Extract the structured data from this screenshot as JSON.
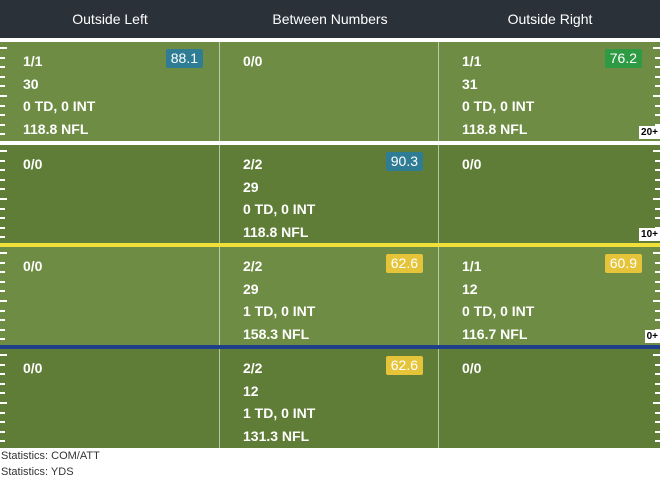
{
  "header": {
    "columns": [
      "Outside Left",
      "Between Numbers",
      "Outside Right"
    ]
  },
  "rows": [
    {
      "yard_label": "20+",
      "cells": [
        {
          "lines": [
            "1/1",
            "30",
            "0 TD, 0 INT",
            "118.8 NFL"
          ],
          "badge": "88.1",
          "badge_color": "blue"
        },
        {
          "lines": [
            "0/0"
          ],
          "badge": null
        },
        {
          "lines": [
            "1/1",
            "31",
            "0 TD, 0 INT",
            "118.8 NFL"
          ],
          "badge": "76.2",
          "badge_color": "green"
        }
      ]
    },
    {
      "yard_label": "10+",
      "cells": [
        {
          "lines": [
            "0/0"
          ],
          "badge": null
        },
        {
          "lines": [
            "2/2",
            "29",
            "0 TD, 0 INT",
            "118.8 NFL"
          ],
          "badge": "90.3",
          "badge_color": "blue"
        },
        {
          "lines": [
            "0/0"
          ],
          "badge": null
        }
      ]
    },
    {
      "yard_label": "0+",
      "cells": [
        {
          "lines": [
            "0/0"
          ],
          "badge": null
        },
        {
          "lines": [
            "2/2",
            "29",
            "1 TD, 0 INT",
            "158.3 NFL"
          ],
          "badge": "62.6",
          "badge_color": "yellow"
        },
        {
          "lines": [
            "1/1",
            "12",
            "0 TD, 0 INT",
            "116.7 NFL"
          ],
          "badge": "60.9",
          "badge_color": "yellow"
        }
      ]
    },
    {
      "yard_label": "",
      "cells": [
        {
          "lines": [
            "0/0"
          ],
          "badge": null
        },
        {
          "lines": [
            "2/2",
            "12",
            "1 TD, 0 INT",
            "131.3 NFL"
          ],
          "badge": "62.6",
          "badge_color": "yellow"
        },
        {
          "lines": [
            "0/0"
          ],
          "badge": null
        }
      ]
    }
  ],
  "dividers": [
    {
      "color": "#ffffff"
    },
    {
      "color": "#f2e03a"
    },
    {
      "color": "#1f3f8a"
    }
  ],
  "footer": {
    "line1": "Statistics: COM/ATT",
    "line2": "Statistics: YDS"
  },
  "colors": {
    "header_bg": "#2b3138",
    "field_light": "#6e8c43",
    "field_dark": "#5f7d36"
  }
}
